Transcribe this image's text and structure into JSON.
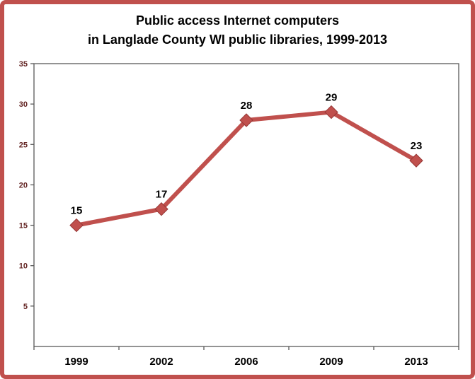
{
  "title": {
    "lines": [
      "Public access Internet computers",
      "in Langlade County WI public libraries, 1999-2013"
    ]
  },
  "frame": {
    "border_color": "#C0504D"
  },
  "chart_data": {
    "type": "line",
    "title": "Public access Internet computers in Langlade County WI public libraries, 1999-2013",
    "categories": [
      "1999",
      "2002",
      "2006",
      "2009",
      "2013"
    ],
    "series": [
      {
        "name": "Public access Internet computers",
        "values": [
          15,
          17,
          28,
          29,
          23
        ]
      }
    ],
    "xlabel": "",
    "ylabel": "",
    "ylim": [
      0,
      35
    ],
    "yticks": [
      5,
      10,
      15,
      20,
      25,
      30,
      35
    ],
    "grid": false,
    "legend": "none",
    "data_labels_shown": true,
    "marker": "diamond",
    "line_color": "#C0504D",
    "marker_edge_color": "#963634",
    "axis_color": "#595959",
    "label_color": "#000000",
    "ytick_color": "#632423"
  }
}
